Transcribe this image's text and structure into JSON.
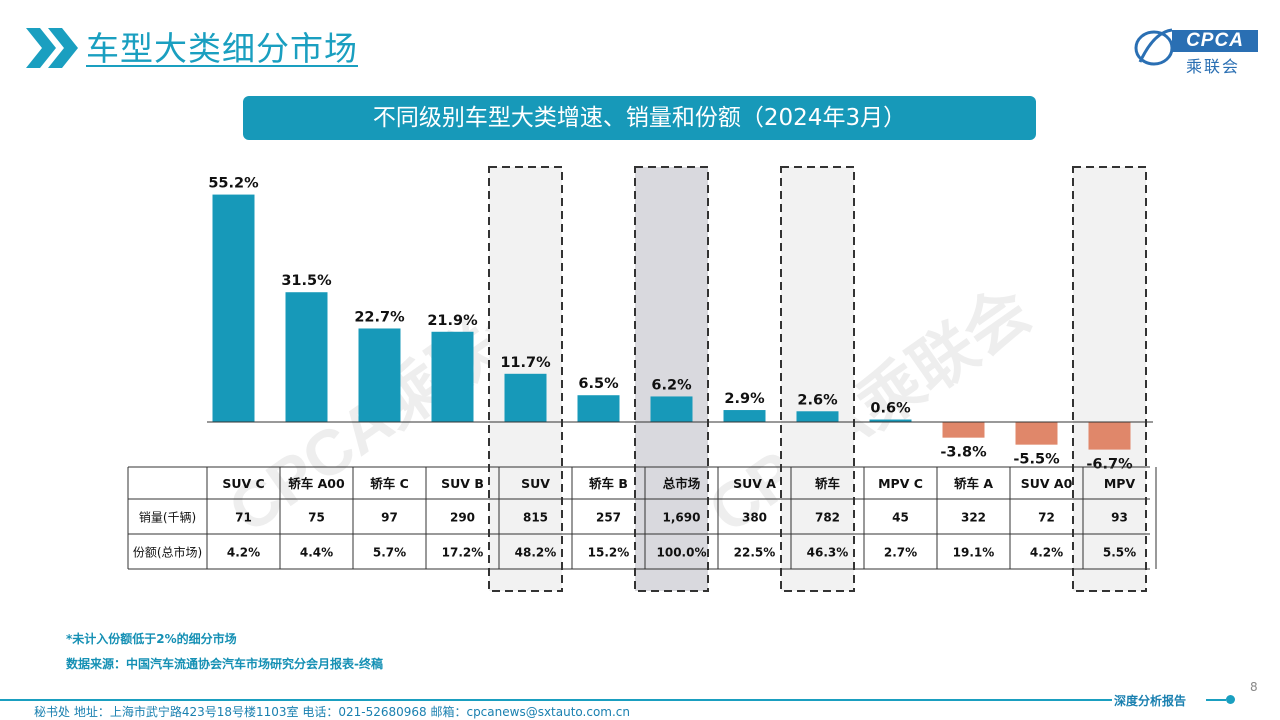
{
  "header": {
    "title": "车型大类细分市场",
    "logo_text": "CPCA",
    "logo_cn": "乘联会",
    "logo_sub": "CPCA"
  },
  "subtitle": "不同级别车型大类增速、销量和份额（2024年3月）",
  "watermark": "CPCA乘联会",
  "colors": {
    "accent": "#1a9fc0",
    "bar_positive": "#1799b9",
    "bar_negative": "#e0876a",
    "highlight_dashed": "#f2f2f2",
    "highlight_total": "#d9d9de"
  },
  "chart_data": {
    "type": "bar",
    "categories": [
      "SUV C",
      "轿车 A00",
      "轿车 C",
      "SUV B",
      "SUV",
      "轿车 B",
      "总市场",
      "SUV A",
      "轿车",
      "MPV C",
      "轿车 A",
      "SUV A0",
      "MPV"
    ],
    "values": [
      55.2,
      31.5,
      22.7,
      21.9,
      11.7,
      6.5,
      6.2,
      2.9,
      2.6,
      0.6,
      -3.8,
      -5.5,
      -6.7
    ],
    "value_labels": [
      "55.2%",
      "31.5%",
      "22.7%",
      "21.9%",
      "11.7%",
      "6.5%",
      "6.2%",
      "2.9%",
      "2.6%",
      "0.6%",
      "-3.8%",
      "-5.5%",
      "-6.7%"
    ],
    "highlighted_dashed": [
      "SUV",
      "轿车",
      "MPV"
    ],
    "highlighted_total": [
      "总市场"
    ],
    "ylim": [
      -8,
      58
    ],
    "grid": false,
    "table": {
      "rows": [
        {
          "label": "销量(千辆)",
          "values": [
            "71",
            "75",
            "97",
            "290",
            "815",
            "257",
            "1,690",
            "380",
            "782",
            "45",
            "322",
            "72",
            "93"
          ]
        },
        {
          "label": "份额(总市场)",
          "values": [
            "4.2%",
            "4.4%",
            "5.7%",
            "17.2%",
            "48.2%",
            "15.2%",
            "100.0%",
            "22.5%",
            "46.3%",
            "2.7%",
            "19.1%",
            "4.2%",
            "5.5%"
          ]
        }
      ]
    }
  },
  "notes": {
    "note1": "*未计入份额低于2%的细分市场",
    "note2": "数据来源：中国汽车流通协会汽车市场研究分会月报表-终稿"
  },
  "footer": {
    "text": "秘书处   地址：上海市武宁路423号18号楼1103室    电话：021-52680968    邮箱：cpcanews@sxtauto.com.cn",
    "tag": "深度分析报告",
    "page_number": "8"
  }
}
